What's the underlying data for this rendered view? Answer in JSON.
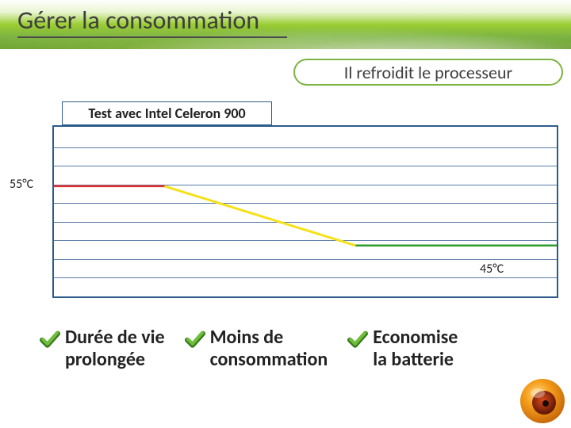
{
  "title": "Gérer la consommation",
  "subtitle": "Il refroidit le processeur",
  "test_label": "Test avec Intel Celeron 900",
  "chart": {
    "type": "line",
    "border_color": "#2e5c8a",
    "grid_color": "#5a7ca8",
    "background_color": "#ffffff",
    "grid_lines_pct": [
      12,
      23,
      34,
      45,
      56,
      67,
      78,
      89
    ],
    "left_axis_label": "55°C",
    "right_axis_label": "45°C",
    "y_range": [
      40,
      60
    ],
    "segments": [
      {
        "name": "high",
        "color": "#e03030",
        "width": 2.5,
        "x1_pct": 0,
        "y1_pct": 35,
        "x2_pct": 22,
        "y2_pct": 35
      },
      {
        "name": "transition",
        "color": "#f5e11a",
        "width": 3,
        "x1_pct": 22,
        "y1_pct": 35,
        "x2_pct": 60,
        "y2_pct": 70
      },
      {
        "name": "low",
        "color": "#2e9e2e",
        "width": 2.5,
        "x1_pct": 60,
        "y1_pct": 70,
        "x2_pct": 100,
        "y2_pct": 70
      }
    ]
  },
  "benefits": [
    {
      "line1": "Durée de vie",
      "line2": "prolongée"
    },
    {
      "line1": "Moins de",
      "line2": "consommation"
    },
    {
      "line1": "Economise",
      "line2": "la batterie"
    }
  ],
  "colors": {
    "title_text": "#3e3e3e",
    "accent_green": "#7cb342",
    "check_fill": "#6fbf3a",
    "check_dark": "#3a7a1e",
    "orb_outer": "#f59e1a",
    "orb_inner": "#8a2a0a"
  }
}
